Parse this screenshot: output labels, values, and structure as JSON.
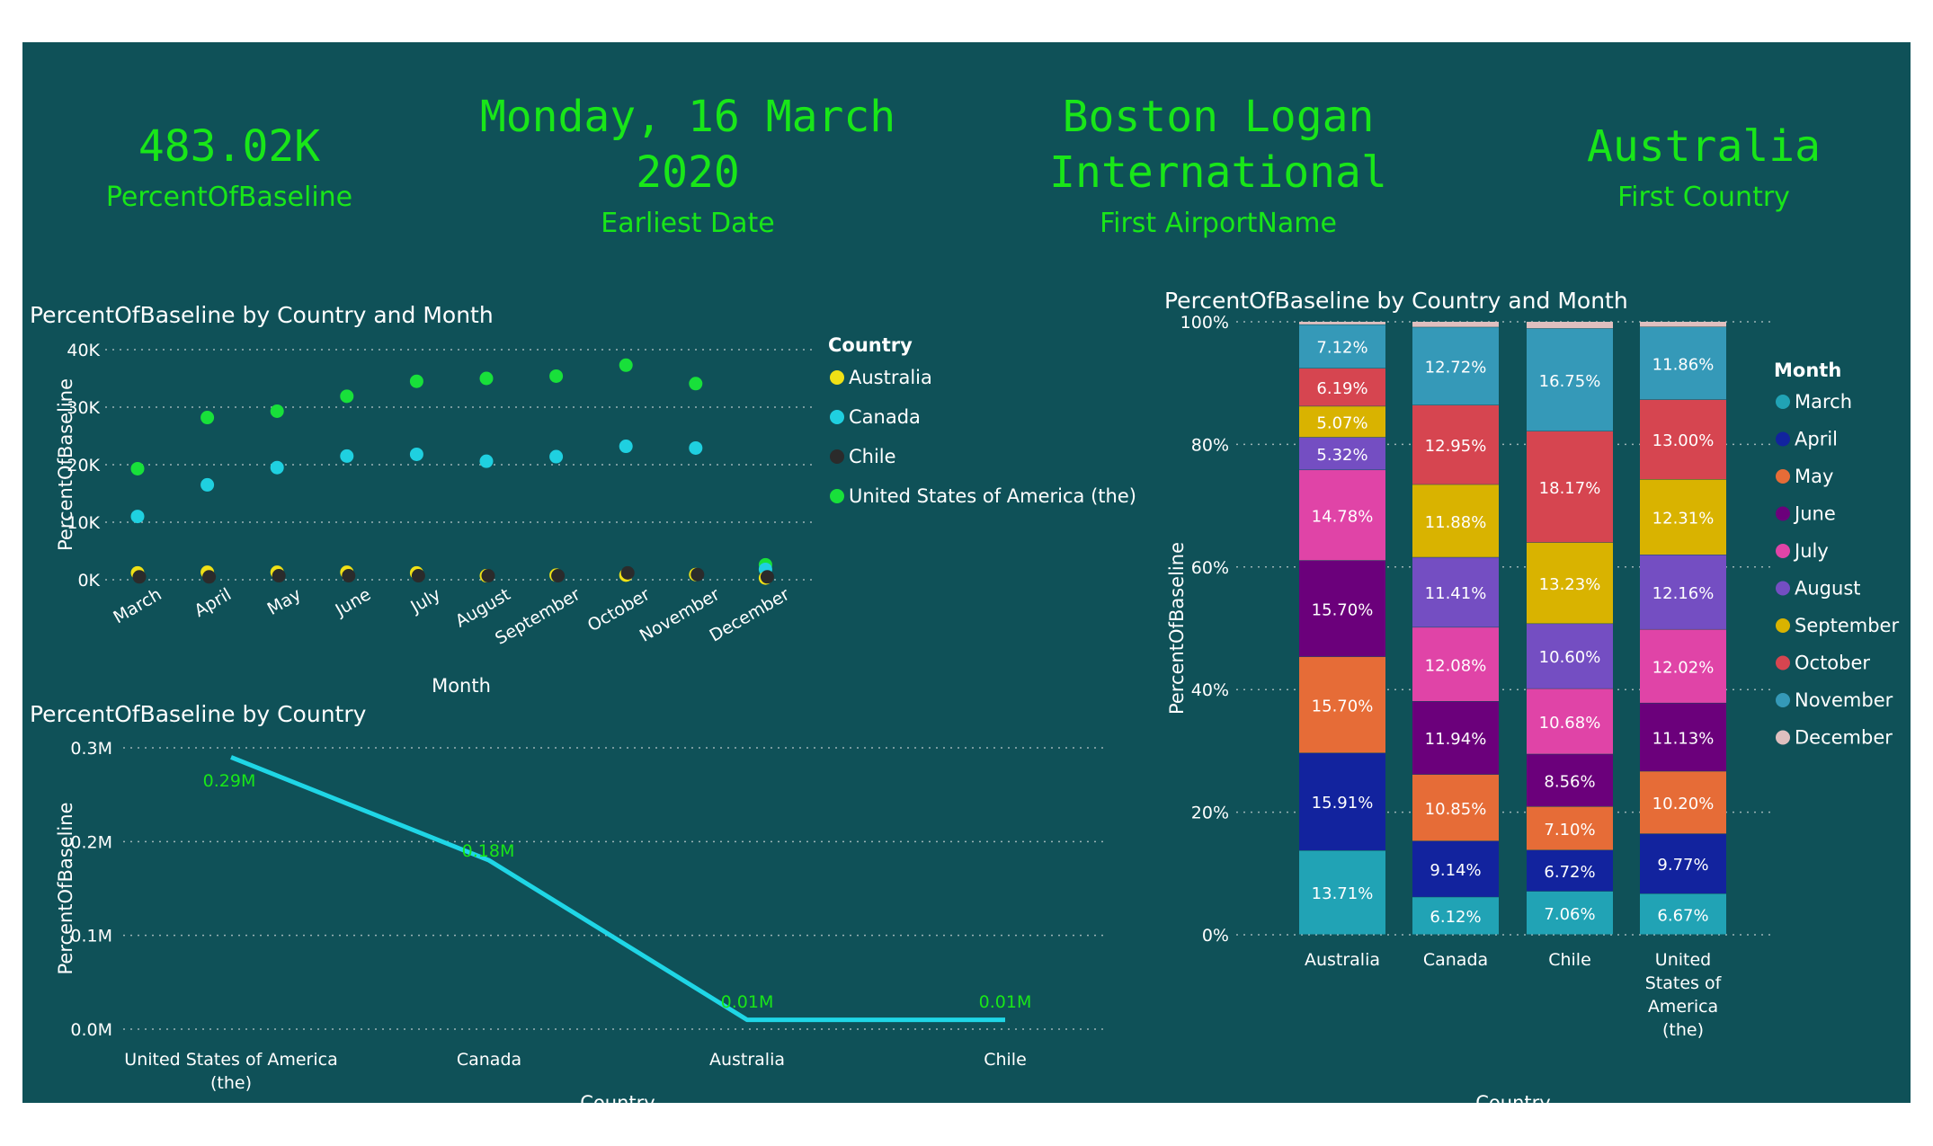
{
  "kpis": [
    {
      "value": "483.02K",
      "label": "PercentOfBaseline"
    },
    {
      "value_lines": [
        "Monday, 16 March",
        "2020"
      ],
      "label": "Earliest Date"
    },
    {
      "value_lines": [
        "Boston Logan",
        "International"
      ],
      "label": "First AirportName"
    },
    {
      "value": "Australia",
      "label": "First Country"
    }
  ],
  "colors": {
    "background": "#0f5158",
    "kpi_text": "#19e619",
    "Australia": "#f0e116",
    "Canada": "#1fd0e0",
    "Chile": "#2b2b2b",
    "United States of America (the)": "#18e03a",
    "line": "#1fd6e6",
    "data_label": "#19e619"
  },
  "chart_data": [
    {
      "type": "scatter",
      "title": "PercentOfBaseline by Country and Month",
      "xlabel": "Month",
      "ylabel": "PercentOfBaseline",
      "ylim": [
        0,
        40000
      ],
      "ytick_labels": [
        "0K",
        "10K",
        "20K",
        "30K",
        "40K"
      ],
      "categories": [
        "March",
        "April",
        "May",
        "June",
        "July",
        "August",
        "September",
        "October",
        "November",
        "December"
      ],
      "legend_title": "Country",
      "legend_position": "right",
      "grid": true,
      "series": [
        {
          "name": "Australia",
          "values": [
            1200,
            1300,
            1300,
            1300,
            1200,
            700,
            800,
            800,
            900,
            300
          ]
        },
        {
          "name": "Canada",
          "values": [
            11000,
            16500,
            19500,
            21500,
            21800,
            20600,
            21400,
            23200,
            22900,
            1800
          ]
        },
        {
          "name": "Chile",
          "values": [
            500,
            500,
            700,
            700,
            700,
            700,
            700,
            1200,
            900,
            500
          ]
        },
        {
          "name": "United States of America (the)",
          "values": [
            19300,
            28200,
            29300,
            31900,
            34500,
            35000,
            35400,
            37300,
            34100,
            2600
          ]
        }
      ]
    },
    {
      "type": "line",
      "title": "PercentOfBaseline by Country",
      "xlabel": "Country",
      "ylabel": "PercentOfBaseline",
      "ylim": [
        0,
        0.3
      ],
      "ytick_labels": [
        "0.0M",
        "0.1M",
        "0.2M",
        "0.3M"
      ],
      "categories": [
        "United States of America (the)",
        "Canada",
        "Australia",
        "Chile"
      ],
      "values": [
        0.29,
        0.18,
        0.01,
        0.01
      ],
      "data_labels": [
        "0.29M",
        "0.18M",
        "0.01M",
        "0.01M"
      ],
      "grid": true
    },
    {
      "type": "bar",
      "stacked": "100%",
      "title": "PercentOfBaseline by Country and Month",
      "xlabel": "Country",
      "ylabel": "PercentOfBaseline",
      "ylim": [
        0,
        100
      ],
      "ytick_labels": [
        "0%",
        "20%",
        "40%",
        "60%",
        "80%",
        "100%"
      ],
      "categories": [
        "Australia",
        "Canada",
        "Chile",
        "United States of America (the)"
      ],
      "legend_title": "Month",
      "legend_position": "right",
      "grid": true,
      "series": [
        {
          "name": "March",
          "color": "#21a3b5",
          "values": [
            13.71,
            6.12,
            7.06,
            6.67
          ]
        },
        {
          "name": "April",
          "color": "#12239e",
          "values": [
            15.91,
            9.14,
            6.72,
            9.77
          ]
        },
        {
          "name": "May",
          "color": "#e66c37",
          "values": [
            15.7,
            10.85,
            7.1,
            10.2
          ]
        },
        {
          "name": "June",
          "color": "#6b007b",
          "values": [
            15.7,
            11.94,
            8.56,
            11.13
          ]
        },
        {
          "name": "July",
          "color": "#e044a7",
          "values": [
            14.78,
            12.08,
            10.68,
            12.02
          ]
        },
        {
          "name": "August",
          "color": "#744ec2",
          "values": [
            5.32,
            11.41,
            10.6,
            12.16
          ]
        },
        {
          "name": "September",
          "color": "#d9b300",
          "values": [
            5.07,
            11.88,
            13.23,
            12.31
          ]
        },
        {
          "name": "October",
          "color": "#d64550",
          "values": [
            6.19,
            12.95,
            18.17,
            13.0
          ]
        },
        {
          "name": "November",
          "color": "#3599b8",
          "values": [
            7.12,
            12.72,
            16.75,
            11.86
          ]
        },
        {
          "name": "December",
          "color": "#dfbfbf",
          "values": [
            0.5,
            0.91,
            1.13,
            0.88
          ]
        }
      ],
      "data_labels": [
        [
          "13.71%",
          "6.12%",
          "7.06%",
          "6.67%"
        ],
        [
          "15.91%",
          "9.14%",
          "6.72%",
          "9.77%"
        ],
        [
          "15.70%",
          "10.85%",
          "7.10%",
          "10.20%"
        ],
        [
          "15.70%",
          "11.94%",
          "8.56%",
          "11.13%"
        ],
        [
          "14.78%",
          "12.08%",
          "10.68%",
          "12.02%"
        ],
        [
          "5.32%",
          "11.41%",
          "10.60%",
          "12.16%"
        ],
        [
          "5.07%",
          "11.88%",
          "13.23%",
          "12.31%"
        ],
        [
          "6.19%",
          "12.95%",
          "18.17%",
          "13.00%"
        ],
        [
          "7.12%",
          "12.72%",
          "16.75%",
          "11.86%"
        ],
        [
          "",
          "",
          "",
          ""
        ]
      ]
    }
  ]
}
